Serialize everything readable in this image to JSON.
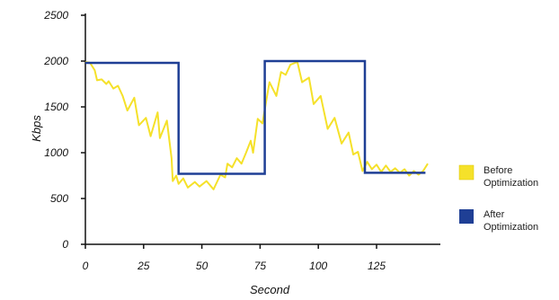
{
  "chart_data": {
    "type": "line",
    "xlabel": "Second",
    "ylabel": "Kbps",
    "xlim": [
      0,
      148
    ],
    "ylim": [
      0,
      2500
    ],
    "x_ticks": [
      0,
      25,
      50,
      75,
      100,
      125
    ],
    "y_ticks": [
      0,
      500,
      1000,
      1500,
      2000,
      2500
    ],
    "grid": false,
    "legend_position": "right",
    "series": [
      {
        "name": "Before Optimization",
        "color": "#f5e12a",
        "points": [
          [
            0,
            1990
          ],
          [
            2,
            1980
          ],
          [
            4,
            1900
          ],
          [
            5,
            1790
          ],
          [
            7,
            1800
          ],
          [
            9,
            1750
          ],
          [
            10,
            1780
          ],
          [
            12,
            1700
          ],
          [
            14,
            1730
          ],
          [
            16,
            1620
          ],
          [
            18,
            1460
          ],
          [
            21,
            1600
          ],
          [
            23,
            1300
          ],
          [
            26,
            1380
          ],
          [
            28,
            1180
          ],
          [
            31,
            1440
          ],
          [
            32,
            1160
          ],
          [
            35,
            1350
          ],
          [
            37,
            940
          ],
          [
            37.5,
            690
          ],
          [
            39,
            750
          ],
          [
            40,
            660
          ],
          [
            42,
            720
          ],
          [
            44,
            620
          ],
          [
            47,
            680
          ],
          [
            49,
            630
          ],
          [
            52,
            690
          ],
          [
            55,
            600
          ],
          [
            58,
            760
          ],
          [
            60,
            730
          ],
          [
            61,
            880
          ],
          [
            63,
            840
          ],
          [
            65,
            940
          ],
          [
            67,
            880
          ],
          [
            69,
            1000
          ],
          [
            71,
            1130
          ],
          [
            72,
            1000
          ],
          [
            74,
            1370
          ],
          [
            76,
            1320
          ],
          [
            79,
            1770
          ],
          [
            82,
            1620
          ],
          [
            84,
            1880
          ],
          [
            86,
            1850
          ],
          [
            88,
            1960
          ],
          [
            91,
            1990
          ],
          [
            93,
            1770
          ],
          [
            96,
            1820
          ],
          [
            98,
            1530
          ],
          [
            101,
            1620
          ],
          [
            104,
            1260
          ],
          [
            107,
            1380
          ],
          [
            110,
            1100
          ],
          [
            113,
            1220
          ],
          [
            115,
            980
          ],
          [
            117,
            1010
          ],
          [
            119,
            800
          ],
          [
            121,
            900
          ],
          [
            123,
            820
          ],
          [
            125,
            870
          ],
          [
            127,
            790
          ],
          [
            129,
            860
          ],
          [
            131,
            790
          ],
          [
            133,
            830
          ],
          [
            135,
            780
          ],
          [
            137,
            820
          ],
          [
            139,
            750
          ],
          [
            141,
            800
          ],
          [
            143,
            760
          ],
          [
            145,
            800
          ],
          [
            147,
            880
          ]
        ]
      },
      {
        "name": "After Optimization",
        "color": "#1f3f95",
        "points": [
          [
            0,
            1980
          ],
          [
            40,
            1980
          ],
          [
            40,
            770
          ],
          [
            77,
            770
          ],
          [
            77,
            2000
          ],
          [
            120,
            2000
          ],
          [
            120,
            780
          ],
          [
            146,
            780
          ]
        ]
      }
    ]
  },
  "legend": {
    "before": {
      "line1": "Before",
      "line2": "Optimization"
    },
    "after": {
      "line1": "After",
      "line2": "Optimization"
    }
  }
}
